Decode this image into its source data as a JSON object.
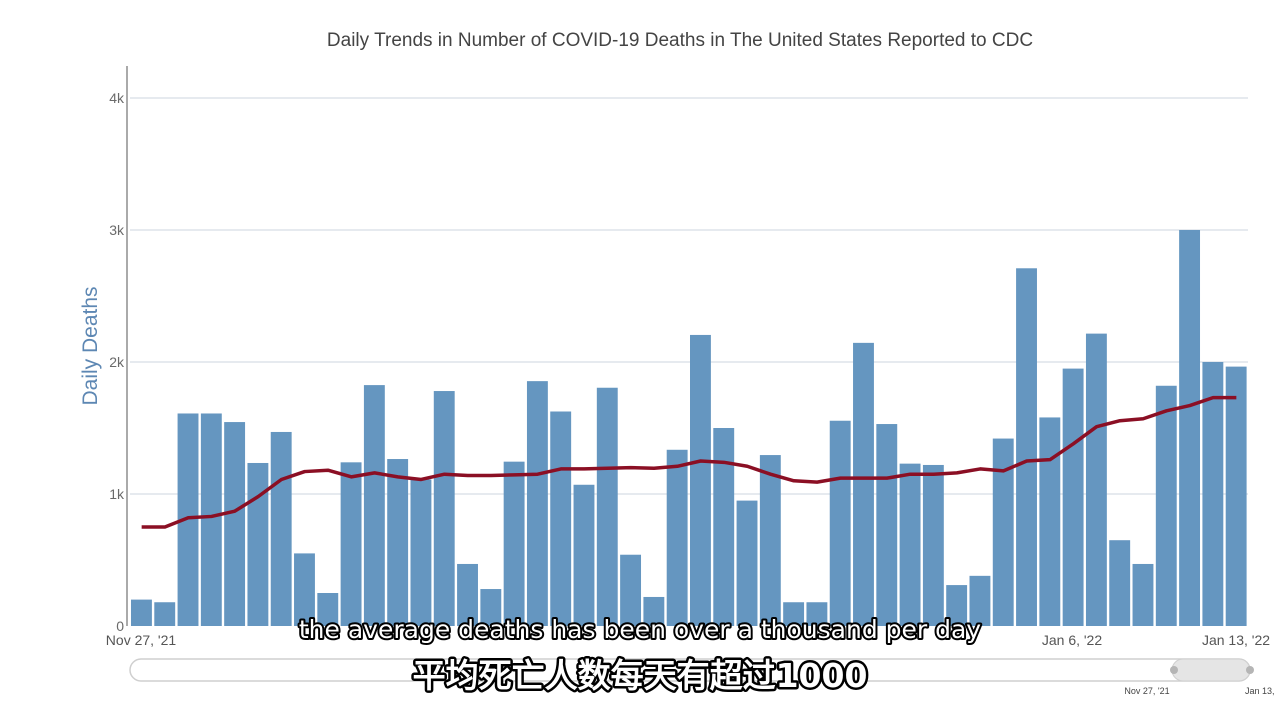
{
  "chart_data": {
    "type": "bar",
    "title": "Daily Trends in Number of COVID-19 Deaths in The United States Reported to CDC",
    "ylabel": "Daily Deaths",
    "xlabel": "",
    "ylim": [
      0,
      4000
    ],
    "y_ticks": [
      {
        "value": 0,
        "label": "0"
      },
      {
        "value": 1000,
        "label": "1k"
      },
      {
        "value": 2000,
        "label": "2k"
      },
      {
        "value": 3000,
        "label": "3k"
      },
      {
        "value": 4000,
        "label": "4k"
      }
    ],
    "x_start": "2021-11-27",
    "x_end": "2022-01-13",
    "x_tick_labels": [
      "Nov 27, '21",
      "Jan 6, '22",
      "Jan 13, '22"
    ],
    "grid": true,
    "bar_color": "#6596c0",
    "line_color": "#8b0f24",
    "series": [
      {
        "type": "bar",
        "values": [
          200,
          180,
          1610,
          1610,
          1545,
          1235,
          1470,
          550,
          250,
          1240,
          1825,
          1265,
          1110,
          1780,
          470,
          280,
          1245,
          1855,
          1625,
          1070,
          1805,
          540,
          220,
          1335,
          2205,
          1500,
          950,
          1295,
          180,
          180,
          1555,
          2145,
          1530,
          1230,
          1220,
          310,
          380,
          1420,
          2710,
          1580,
          1950,
          2215,
          650,
          470,
          1820,
          3000,
          2000,
          1965
        ]
      },
      {
        "type": "line",
        "values": [
          750,
          750,
          820,
          830,
          870,
          980,
          1110,
          1170,
          1180,
          1130,
          1160,
          1130,
          1110,
          1150,
          1140,
          1140,
          1145,
          1150,
          1190,
          1190,
          1195,
          1200,
          1195,
          1210,
          1250,
          1240,
          1210,
          1150,
          1100,
          1090,
          1120,
          1120,
          1120,
          1150,
          1150,
          1160,
          1190,
          1175,
          1250,
          1260,
          1380,
          1510,
          1555,
          1570,
          1630,
          1670,
          1730,
          1730
        ]
      }
    ]
  },
  "range_slider": {
    "start_label": "Nov 27, '21",
    "end_label": "Jan 13,"
  },
  "subtitles": {
    "english": "the average deaths has been over a thousand per day",
    "chinese": "平均死亡人数每天有超过1000"
  }
}
